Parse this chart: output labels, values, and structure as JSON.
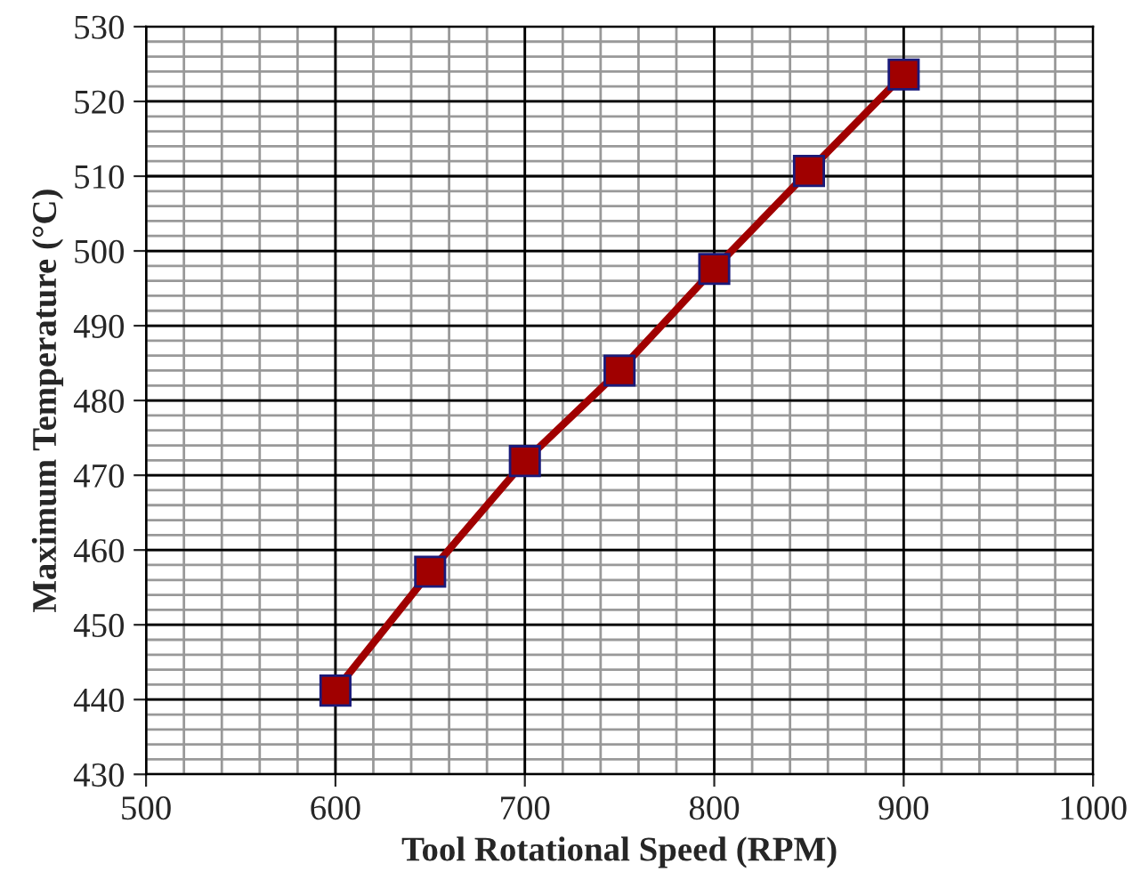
{
  "chart_data": {
    "type": "line",
    "xlabel": "Tool Rotational Speed (RPM)",
    "ylabel": "Maximum Temperature (°C)",
    "x": [
      600,
      650,
      700,
      750,
      800,
      850,
      900
    ],
    "series": [
      {
        "color": "#a00000",
        "values": [
          441.2,
          457.1,
          471.9,
          484.0,
          497.6,
          510.7,
          523.6
        ]
      }
    ],
    "xlim": [
      500,
      1000
    ],
    "xticks": [
      500,
      600,
      700,
      800,
      900,
      1000
    ],
    "ylim": [
      430,
      530
    ],
    "yticks": [
      430,
      440,
      450,
      460,
      470,
      480,
      490,
      500,
      510,
      520,
      530
    ],
    "grid": true,
    "marker": "square",
    "line_style": "solid",
    "legend": false
  }
}
